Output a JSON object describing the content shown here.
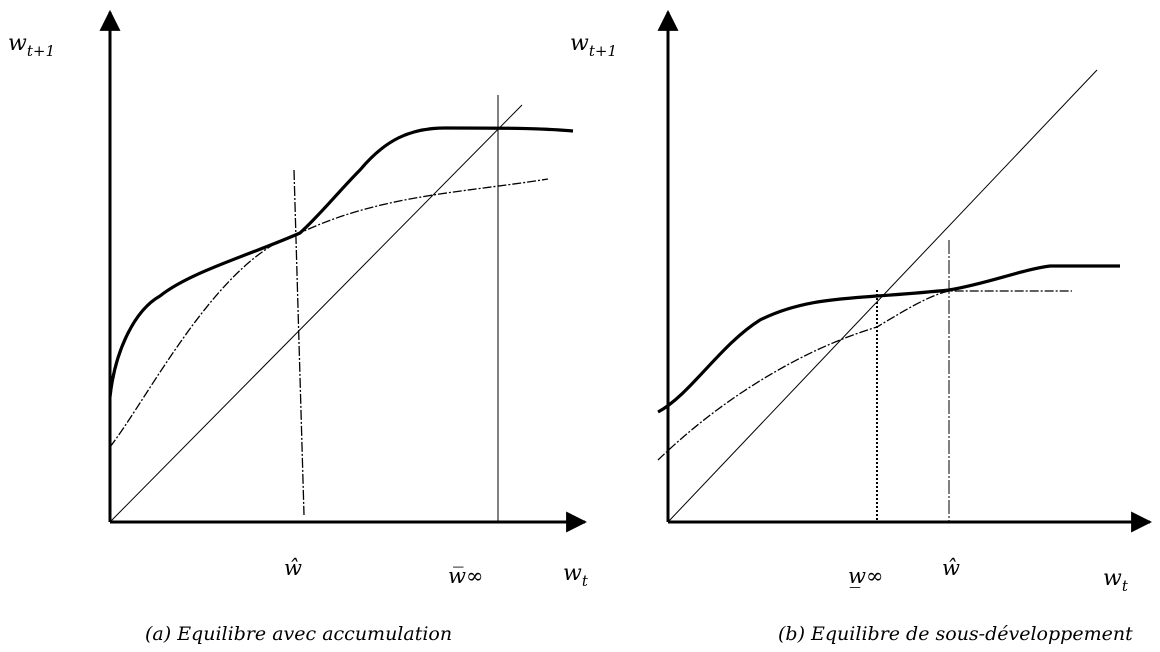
{
  "panels": [
    {
      "id": "a",
      "y_axis_label": "w",
      "y_axis_sub": "t+1",
      "x_axis_label": "w",
      "x_axis_sub": "t",
      "tick_labels": [
        "ŵ",
        "w̅∞"
      ],
      "caption": "(a) Equilibre avec accumulation"
    },
    {
      "id": "b",
      "y_axis_label": "w",
      "y_axis_sub": "t+1",
      "x_axis_label": "w",
      "x_axis_sub": "t",
      "tick_labels": [
        "w̲∞",
        "ŵ"
      ],
      "caption": "(b) Equilibre de sous-développement"
    }
  ]
}
